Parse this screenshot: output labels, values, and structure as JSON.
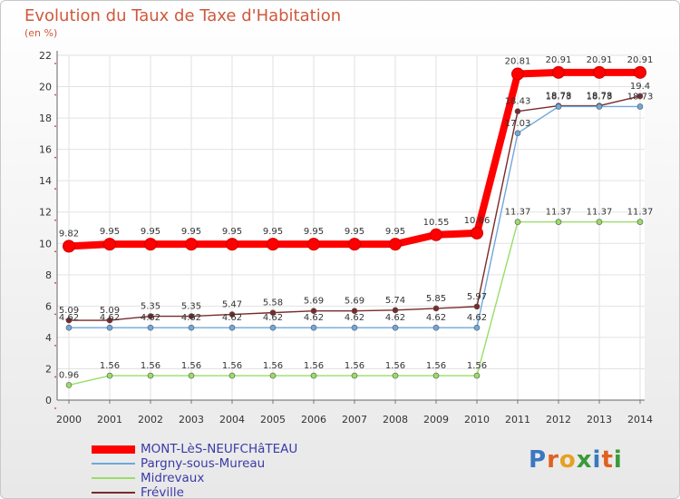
{
  "title": "Evolution du Taux de Taxe d'Habitation",
  "unit_label": "(en %)",
  "logo": {
    "text": "Proxiti",
    "colors": [
      "#3a78c0",
      "#e06020",
      "#e8a020",
      "#3a9a3a",
      "#3a78c0",
      "#e06020",
      "#3a9a3a"
    ]
  },
  "chart_data": {
    "type": "line",
    "title": "Evolution du Taux de Taxe d'Habitation",
    "ylabel": "(en %)",
    "xlabel": "",
    "x": [
      "2000",
      "2001",
      "2002",
      "2003",
      "2004",
      "2005",
      "2006",
      "2007",
      "2008",
      "2009",
      "2010",
      "2011",
      "2012",
      "2013",
      "2014"
    ],
    "ylim": [
      0,
      22
    ],
    "yticks": [
      "0",
      "2",
      "4",
      "6",
      "8",
      "10",
      "12",
      "14",
      "16",
      "18",
      "20",
      "22"
    ],
    "grid": true,
    "legend_position": "bottom-left",
    "series": [
      {
        "name": "MONT-LèS-NEUFCHâTEAU",
        "color": "#ff0000",
        "values": [
          9.82,
          9.95,
          9.95,
          9.95,
          9.95,
          9.95,
          9.95,
          9.95,
          9.95,
          10.55,
          10.66,
          20.81,
          20.91,
          20.91,
          20.91
        ],
        "labels": [
          "9.82",
          "9.95",
          "9.95",
          "9.95",
          "9.95",
          "9.95",
          "9.95",
          "9.95",
          "9.95",
          "10.55",
          "10.66",
          "20.81",
          "20.91",
          "20.91",
          "20.91"
        ]
      },
      {
        "name": "Pargny-sous-Mureau",
        "color": "#6fa8dc",
        "values": [
          4.62,
          4.62,
          4.62,
          4.62,
          4.62,
          4.62,
          4.62,
          4.62,
          4.62,
          4.62,
          4.62,
          17.03,
          18.73,
          18.73,
          18.73
        ],
        "labels": [
          "4.62",
          "4.62",
          "4.62",
          "4.62",
          "4.62",
          "4.62",
          "4.62",
          "4.62",
          "4.62",
          "4.62",
          "4.62",
          "17.03",
          "18.73",
          "18.73",
          "18.73"
        ]
      },
      {
        "name": "Midrevaux",
        "color": "#99dd66",
        "values": [
          0.96,
          1.56,
          1.56,
          1.56,
          1.56,
          1.56,
          1.56,
          1.56,
          1.56,
          1.56,
          1.56,
          11.37,
          11.37,
          11.37,
          11.37
        ],
        "labels": [
          "0.96",
          "1.56",
          "1.56",
          "1.56",
          "1.56",
          "1.56",
          "1.56",
          "1.56",
          "1.56",
          "1.56",
          "1.56",
          "11.37",
          "11.37",
          "11.37",
          "11.37"
        ]
      },
      {
        "name": "Fréville",
        "color": "#7a2a2a",
        "values": [
          5.09,
          5.09,
          5.35,
          5.35,
          5.47,
          5.58,
          5.69,
          5.69,
          5.74,
          5.85,
          5.97,
          18.43,
          18.78,
          18.78,
          19.4
        ],
        "labels": [
          "5.09",
          "5.09",
          "5.35",
          "5.35",
          "5.47",
          "5.58",
          "5.69",
          "5.69",
          "5.74",
          "5.85",
          "5.97",
          "18.43",
          "18.78",
          "18.78",
          "19.4"
        ]
      }
    ]
  }
}
